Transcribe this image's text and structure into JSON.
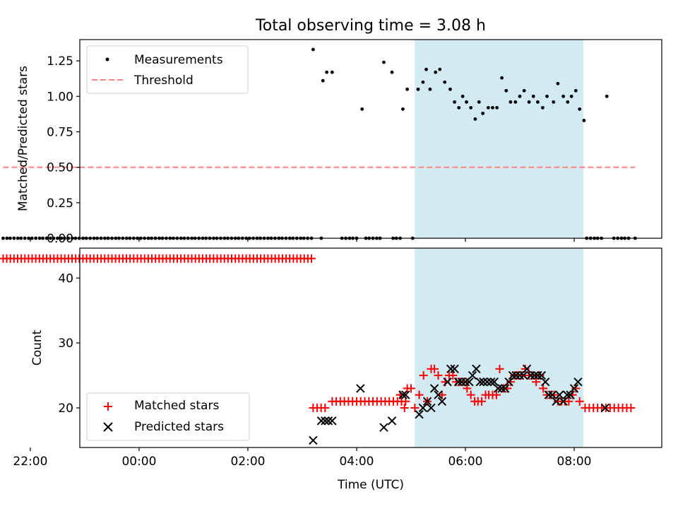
{
  "figure": {
    "title": "Total observing time = 3.08 h",
    "xlabel": "Time (UTC)",
    "highlight_color": "#add8e6",
    "highlight_window": [
      5.07,
      8.17
    ]
  },
  "chart_data": [
    {
      "type": "scatter",
      "name": "top",
      "ylabel": "Matched/Predicted stars",
      "xlim": [
        -1.09,
        9.61
      ],
      "ylim": [
        0.0,
        1.4
      ],
      "xticks": [
        -2,
        0,
        2,
        4,
        6,
        8
      ],
      "yticks": [
        0.0,
        0.25,
        0.5,
        0.75,
        1.0,
        1.25
      ],
      "ytick_labels": [
        "0.00",
        "0.25",
        "0.50",
        "0.75",
        "1.00",
        "1.25"
      ],
      "legend": [
        {
          "label": "Measurements",
          "color": "#000000",
          "marker": "dot"
        },
        {
          "label": "Threshold",
          "color": "#ff8080",
          "marker": "dashed-line"
        }
      ],
      "threshold": {
        "value": 0.5,
        "x_range": [
          -2.5,
          9.12
        ],
        "color": "#ff8080"
      },
      "measurements": {
        "color": "#000000",
        "zero_points": [
          -2.5,
          -2.43,
          -2.37,
          -2.3,
          -2.23,
          -2.17,
          -2.1,
          -2.03,
          -1.97,
          -1.9,
          -1.83,
          -1.77,
          -1.7,
          -1.63,
          -1.57,
          -1.5,
          -1.43,
          -1.37,
          -1.3,
          -1.23,
          -1.17,
          -1.1,
          -1.03,
          -0.97,
          -0.9,
          -0.83,
          -0.77,
          -0.7,
          -0.63,
          -0.57,
          -0.5,
          -0.43,
          -0.37,
          -0.3,
          -0.23,
          -0.17,
          -0.1,
          -0.03,
          0.03,
          0.1,
          0.17,
          0.23,
          0.3,
          0.37,
          0.43,
          0.5,
          0.57,
          0.63,
          0.7,
          0.77,
          0.83,
          0.9,
          0.97,
          1.03,
          1.1,
          1.17,
          1.23,
          1.3,
          1.37,
          1.43,
          1.5,
          1.57,
          1.63,
          1.7,
          1.77,
          1.83,
          1.9,
          1.97,
          2.03,
          2.1,
          2.17,
          2.23,
          2.3,
          2.37,
          2.43,
          2.5,
          2.57,
          2.63,
          2.7,
          2.77,
          2.83,
          2.9,
          2.97,
          3.03,
          3.1,
          3.17,
          3.35,
          3.73,
          3.8,
          3.87,
          3.93,
          4.0,
          4.17,
          4.23,
          4.3,
          4.37,
          4.43,
          4.67,
          4.73,
          4.8,
          5.03,
          8.23,
          8.3,
          8.37,
          8.43,
          8.5,
          8.73,
          8.8,
          8.87,
          8.93,
          9.0,
          9.12
        ],
        "points": [
          [
            3.2,
            1.33
          ],
          [
            3.38,
            1.11
          ],
          [
            3.45,
            1.17
          ],
          [
            3.55,
            1.17
          ],
          [
            4.1,
            0.91
          ],
          [
            4.5,
            1.24
          ],
          [
            4.65,
            1.17
          ],
          [
            4.85,
            0.91
          ],
          [
            4.93,
            1.05
          ],
          [
            5.13,
            1.05
          ],
          [
            5.22,
            1.1
          ],
          [
            5.28,
            1.19
          ],
          [
            5.35,
            1.05
          ],
          [
            5.45,
            1.17
          ],
          [
            5.53,
            1.19
          ],
          [
            5.62,
            1.1
          ],
          [
            5.72,
            1.05
          ],
          [
            5.8,
            0.96
          ],
          [
            5.88,
            0.92
          ],
          [
            5.95,
            1.0
          ],
          [
            6.02,
            0.96
          ],
          [
            6.1,
            0.92
          ],
          [
            6.18,
            0.84
          ],
          [
            6.25,
            0.96
          ],
          [
            6.32,
            0.88
          ],
          [
            6.42,
            0.92
          ],
          [
            6.5,
            0.92
          ],
          [
            6.58,
            0.92
          ],
          [
            6.67,
            1.13
          ],
          [
            6.75,
            1.04
          ],
          [
            6.83,
            0.96
          ],
          [
            6.92,
            0.96
          ],
          [
            7.0,
            1.0
          ],
          [
            7.08,
            1.04
          ],
          [
            7.17,
            0.96
          ],
          [
            7.25,
            1.0
          ],
          [
            7.33,
            0.96
          ],
          [
            7.42,
            0.92
          ],
          [
            7.5,
            1.0
          ],
          [
            7.62,
            0.96
          ],
          [
            7.7,
            1.09
          ],
          [
            7.8,
            1.0
          ],
          [
            7.88,
            0.96
          ],
          [
            7.95,
            1.0
          ],
          [
            8.03,
            1.04
          ],
          [
            8.1,
            0.91
          ],
          [
            8.18,
            0.83
          ],
          [
            8.6,
            1.0
          ]
        ]
      }
    },
    {
      "type": "scatter",
      "name": "bottom",
      "ylabel": "Count",
      "xlim": [
        -1.09,
        9.61
      ],
      "ylim": [
        13.9,
        44.6
      ],
      "xticks": [
        -2,
        0,
        2,
        4,
        6,
        8
      ],
      "xtick_labels": [
        "22:00",
        "00:00",
        "02:00",
        "04:00",
        "06:00",
        "08:00"
      ],
      "yticks": [
        20,
        30,
        40
      ],
      "legend": [
        {
          "label": "Matched stars",
          "color": "#ff0000",
          "marker": "plus"
        },
        {
          "label": "Predicted stars",
          "color": "#000000",
          "marker": "x"
        }
      ],
      "series": [
        {
          "name": "Matched stars",
          "color": "#ff0000",
          "marker": "plus",
          "runs": [
            {
              "x_start": -2.5,
              "x_end": 3.17,
              "step": 0.0667,
              "y": 43
            },
            {
              "x_start": 3.2,
              "x_end": 3.42,
              "step": 0.0733,
              "y": 20
            },
            {
              "x_start": 3.55,
              "x_end": 4.9,
              "step": 0.075,
              "y": 21
            },
            {
              "x_start": 8.2,
              "x_end": 9.12,
              "step": 0.0767,
              "y": 20
            }
          ],
          "points": [
            [
              4.8,
              22
            ],
            [
              4.88,
              20
            ],
            [
              4.93,
              23
            ],
            [
              5.0,
              23
            ],
            [
              5.07,
              20
            ],
            [
              5.15,
              22
            ],
            [
              5.23,
              25
            ],
            [
              5.3,
              21
            ],
            [
              5.37,
              26
            ],
            [
              5.43,
              26
            ],
            [
              5.5,
              25
            ],
            [
              5.57,
              22
            ],
            [
              5.63,
              24
            ],
            [
              5.7,
              25
            ],
            [
              5.77,
              25
            ],
            [
              5.83,
              24
            ],
            [
              5.9,
              24
            ],
            [
              5.97,
              24
            ],
            [
              6.03,
              23
            ],
            [
              6.1,
              22
            ],
            [
              6.17,
              21
            ],
            [
              6.23,
              21
            ],
            [
              6.3,
              21
            ],
            [
              6.37,
              22
            ],
            [
              6.43,
              22
            ],
            [
              6.5,
              22
            ],
            [
              6.57,
              22
            ],
            [
              6.63,
              26
            ],
            [
              6.7,
              23
            ],
            [
              6.77,
              23
            ],
            [
              6.83,
              24
            ],
            [
              6.9,
              25
            ],
            [
              6.97,
              25
            ],
            [
              7.03,
              25
            ],
            [
              7.1,
              26
            ],
            [
              7.17,
              25
            ],
            [
              7.23,
              25
            ],
            [
              7.3,
              24
            ],
            [
              7.37,
              25
            ],
            [
              7.43,
              23
            ],
            [
              7.5,
              22
            ],
            [
              7.57,
              22
            ],
            [
              7.63,
              22
            ],
            [
              7.7,
              21
            ],
            [
              7.77,
              21
            ],
            [
              7.83,
              21
            ],
            [
              7.9,
              21
            ],
            [
              7.97,
              22
            ],
            [
              8.03,
              23
            ],
            [
              8.1,
              21
            ]
          ]
        },
        {
          "name": "Predicted stars",
          "color": "#000000",
          "marker": "x",
          "points": [
            [
              3.2,
              15
            ],
            [
              3.35,
              18
            ],
            [
              3.42,
              18
            ],
            [
              3.48,
              18
            ],
            [
              3.55,
              18
            ],
            [
              4.07,
              23
            ],
            [
              4.5,
              17
            ],
            [
              4.65,
              18
            ],
            [
              4.85,
              22
            ],
            [
              4.9,
              22
            ],
            [
              5.15,
              19
            ],
            [
              5.22,
              20
            ],
            [
              5.3,
              21
            ],
            [
              5.37,
              20
            ],
            [
              5.43,
              23
            ],
            [
              5.5,
              22
            ],
            [
              5.57,
              21
            ],
            [
              5.67,
              24
            ],
            [
              5.73,
              26
            ],
            [
              5.8,
              26
            ],
            [
              5.87,
              24
            ],
            [
              5.93,
              24
            ],
            [
              6.0,
              24
            ],
            [
              6.07,
              24
            ],
            [
              6.13,
              25
            ],
            [
              6.2,
              26
            ],
            [
              6.27,
              24
            ],
            [
              6.33,
              24
            ],
            [
              6.4,
              24
            ],
            [
              6.47,
              24
            ],
            [
              6.53,
              24
            ],
            [
              6.6,
              23
            ],
            [
              6.67,
              23
            ],
            [
              6.73,
              23
            ],
            [
              6.8,
              24
            ],
            [
              6.87,
              25
            ],
            [
              6.93,
              25
            ],
            [
              7.0,
              25
            ],
            [
              7.07,
              25
            ],
            [
              7.13,
              26
            ],
            [
              7.2,
              25
            ],
            [
              7.27,
              25
            ],
            [
              7.33,
              25
            ],
            [
              7.4,
              25
            ],
            [
              7.47,
              24
            ],
            [
              7.53,
              22
            ],
            [
              7.6,
              22
            ],
            [
              7.67,
              21
            ],
            [
              7.73,
              22
            ],
            [
              7.8,
              21
            ],
            [
              7.87,
              22
            ],
            [
              7.93,
              22
            ],
            [
              8.0,
              23
            ],
            [
              8.07,
              24
            ],
            [
              8.57,
              20
            ]
          ]
        }
      ]
    }
  ]
}
